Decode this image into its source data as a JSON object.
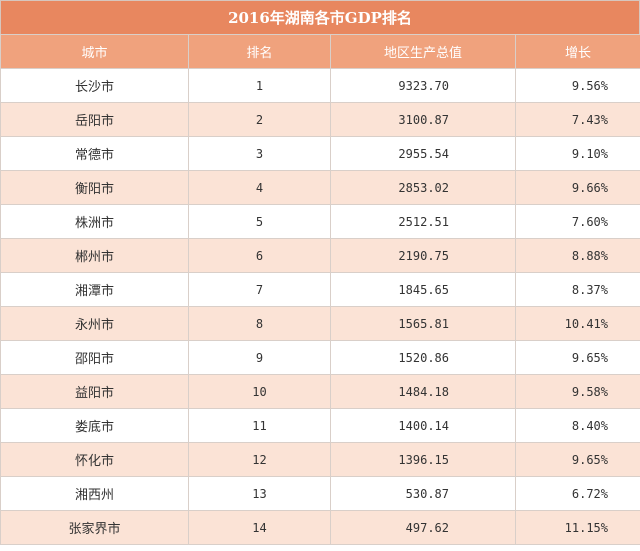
{
  "title": "2016年湖南各市GDP排名",
  "headers": {
    "city": "城市",
    "rank": "排名",
    "gdp": "地区生产总值",
    "growth": "增长"
  },
  "rows": [
    {
      "city": "长沙市",
      "rank": "1",
      "gdp": "9323.70",
      "growth": "9.56%"
    },
    {
      "city": "岳阳市",
      "rank": "2",
      "gdp": "3100.87",
      "growth": "7.43%"
    },
    {
      "city": "常德市",
      "rank": "3",
      "gdp": "2955.54",
      "growth": "9.10%"
    },
    {
      "city": "衡阳市",
      "rank": "4",
      "gdp": "2853.02",
      "growth": "9.66%"
    },
    {
      "city": "株洲市",
      "rank": "5",
      "gdp": "2512.51",
      "growth": "7.60%"
    },
    {
      "city": "郴州市",
      "rank": "6",
      "gdp": "2190.75",
      "growth": "8.88%"
    },
    {
      "city": "湘潭市",
      "rank": "7",
      "gdp": "1845.65",
      "growth": "8.37%"
    },
    {
      "city": "永州市",
      "rank": "8",
      "gdp": "1565.81",
      "growth": "10.41%"
    },
    {
      "city": "邵阳市",
      "rank": "9",
      "gdp": "1520.86",
      "growth": "9.65%"
    },
    {
      "city": "益阳市",
      "rank": "10",
      "gdp": "1484.18",
      "growth": "9.58%"
    },
    {
      "city": "娄底市",
      "rank": "11",
      "gdp": "1400.14",
      "growth": "8.40%"
    },
    {
      "city": "怀化市",
      "rank": "12",
      "gdp": "1396.15",
      "growth": "9.65%"
    },
    {
      "city": "湘西州",
      "rank": "13",
      "gdp": "530.87",
      "growth": "6.72%"
    },
    {
      "city": "张家界市",
      "rank": "14",
      "gdp": "497.62",
      "growth": "11.15%"
    }
  ],
  "colors": {
    "title_bg": "#e8875f",
    "header_bg": "#f0a27d",
    "stripe": "#fbe3d6"
  }
}
